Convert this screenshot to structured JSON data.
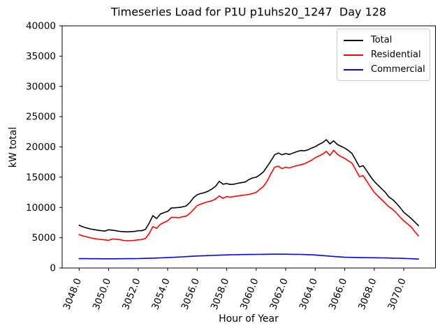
{
  "title": "Timeseries Load for P1U p1uhs20_1247  Day 128",
  "chart_data": {
    "type": "line",
    "title": "Timeseries Load for P1U p1uhs20_1247  Day 128",
    "xlabel": "Hour of Year",
    "ylabel": "kW total",
    "xlim": [
      3046.85,
      3072.15
    ],
    "ylim": [
      0,
      40000
    ],
    "grid": false,
    "legend_position": "upper right",
    "x_ticks": [
      3048,
      3050,
      3052,
      3054,
      3056,
      3058,
      3060,
      3062,
      3064,
      3066,
      3068,
      3070
    ],
    "x_tick_labels": [
      "3048.0",
      "3050.0",
      "3052.0",
      "3054.0",
      "3056.0",
      "3058.0",
      "3060.0",
      "3062.0",
      "3064.0",
      "3066.0",
      "3068.0",
      "3070.0"
    ],
    "y_ticks": [
      0,
      5000,
      10000,
      15000,
      20000,
      25000,
      30000,
      35000,
      40000
    ],
    "y_tick_labels": [
      "0",
      "5000",
      "10000",
      "15000",
      "20000",
      "25000",
      "30000",
      "35000",
      "40000"
    ],
    "x_start": 3048.0,
    "x_step": 0.25,
    "series": [
      {
        "name": "Total",
        "color": "#000000",
        "values": [
          7050,
          6800,
          6620,
          6450,
          6350,
          6250,
          6150,
          6100,
          6320,
          6250,
          6150,
          6050,
          6000,
          5970,
          6000,
          6040,
          6150,
          6160,
          6400,
          7400,
          8650,
          8150,
          8900,
          9150,
          9350,
          9900,
          9950,
          10000,
          10100,
          10250,
          10800,
          11600,
          12100,
          12300,
          12450,
          12700,
          13050,
          13500,
          14300,
          13850,
          13950,
          13800,
          13850,
          14000,
          14100,
          14200,
          14600,
          14870,
          15000,
          15400,
          15900,
          16800,
          17700,
          18700,
          19000,
          18700,
          18900,
          18750,
          19000,
          19200,
          19400,
          19350,
          19500,
          19800,
          20050,
          20400,
          20700,
          21200,
          20500,
          21000,
          20400,
          20100,
          19800,
          19400,
          18900,
          17800,
          16700,
          16900,
          16000,
          15100,
          14300,
          13700,
          13100,
          12500,
          11700,
          11300,
          10700,
          10000,
          9200,
          8700,
          8200,
          7600,
          7000
        ]
      },
      {
        "name": "Residential",
        "color": "#ff0000",
        "values": [
          5520,
          5300,
          5150,
          5000,
          4870,
          4780,
          4700,
          4650,
          4560,
          4800,
          4750,
          4690,
          4550,
          4490,
          4520,
          4560,
          4650,
          4690,
          4900,
          5700,
          6820,
          6550,
          7200,
          7500,
          7790,
          8370,
          8350,
          8300,
          8450,
          8570,
          9000,
          9620,
          10320,
          10550,
          10780,
          10950,
          11100,
          11400,
          11900,
          11500,
          11800,
          11700,
          11800,
          11900,
          12000,
          12050,
          12150,
          12300,
          12500,
          13000,
          13500,
          14400,
          15570,
          16650,
          16810,
          16420,
          16650,
          16530,
          16730,
          16900,
          17040,
          17200,
          17510,
          17800,
          18210,
          18500,
          18800,
          19260,
          18600,
          19450,
          18800,
          18400,
          18100,
          17700,
          17300,
          16200,
          15100,
          15250,
          14300,
          13400,
          12500,
          11900,
          11300,
          10700,
          10100,
          9700,
          9100,
          8400,
          7800,
          7300,
          6800,
          6000,
          5300
        ]
      },
      {
        "name": "Commercial",
        "color": "#0000ff",
        "values": [
          1550,
          1545,
          1540,
          1535,
          1530,
          1530,
          1525,
          1525,
          1520,
          1520,
          1525,
          1530,
          1530,
          1540,
          1545,
          1550,
          1560,
          1575,
          1590,
          1605,
          1620,
          1645,
          1670,
          1695,
          1720,
          1750,
          1780,
          1810,
          1840,
          1875,
          1910,
          1945,
          1980,
          2005,
          2030,
          2055,
          2080,
          2100,
          2120,
          2140,
          2160,
          2175,
          2190,
          2205,
          2220,
          2230,
          2235,
          2240,
          2250,
          2260,
          2265,
          2270,
          2280,
          2280,
          2280,
          2280,
          2280,
          2270,
          2265,
          2260,
          2250,
          2225,
          2200,
          2175,
          2150,
          2100,
          2050,
          2000,
          1950,
          1910,
          1865,
          1820,
          1780,
          1765,
          1750,
          1735,
          1720,
          1710,
          1705,
          1700,
          1690,
          1680,
          1670,
          1660,
          1650,
          1630,
          1615,
          1600,
          1580,
          1555,
          1530,
          1505,
          1480
        ]
      }
    ]
  }
}
